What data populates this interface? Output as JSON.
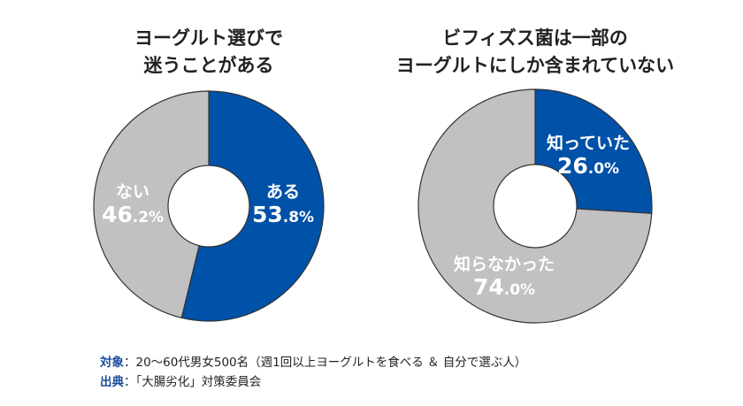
{
  "colors": {
    "blue": "#0051a8",
    "gray": "#c1c1c1",
    "outline": "#333333"
  },
  "chart_data": [
    {
      "type": "pie",
      "donut": true,
      "title": "ヨーグルト選びで\n迷うことがある",
      "title_lines": [
        "ヨーグルト選びで",
        "迷うことがある"
      ],
      "slices": [
        {
          "label": "ある",
          "value": 53.8,
          "display": "53.8%",
          "color": "#0051a8"
        },
        {
          "label": "ない",
          "value": 46.2,
          "display": "46.2%",
          "color": "#c1c1c1"
        }
      ]
    },
    {
      "type": "pie",
      "donut": true,
      "title": "ビフィズス菌は一部の\nヨーグルトにしか含まれていない",
      "title_lines": [
        "ビフィズス菌は一部の",
        "ヨーグルトにしか含まれていない"
      ],
      "slices": [
        {
          "label": "知っていた",
          "value": 26.0,
          "display": "26.0%",
          "color": "#0051a8"
        },
        {
          "label": "知らなかった",
          "value": 74.0,
          "display": "74.0%",
          "color": "#c1c1c1"
        }
      ]
    }
  ],
  "notes": [
    {
      "key": "対象",
      "text": "：20〜60代男女500名（週1回以上ヨーグルトを食べる ＆ 自分で選ぶ人）"
    },
    {
      "key": "出典",
      "text": "：「大腸劣化」対策委員会"
    }
  ]
}
